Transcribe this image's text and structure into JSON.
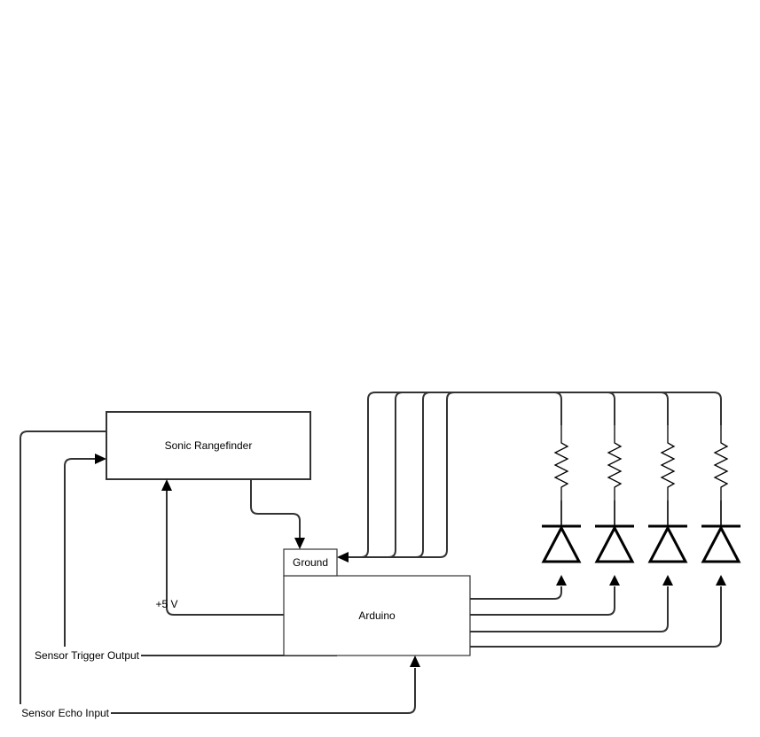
{
  "blocks": {
    "rangefinder": "Sonic Rangefinder",
    "arduino": "Arduino",
    "ground": "Ground"
  },
  "signals": {
    "power": "+5 V",
    "trigger": "Sensor Trigger Output",
    "echo": "Sensor Echo Input"
  },
  "led_channels": 4,
  "colors": {
    "wire": "#333333",
    "arrow": "#000000",
    "background": "#ffffff"
  }
}
